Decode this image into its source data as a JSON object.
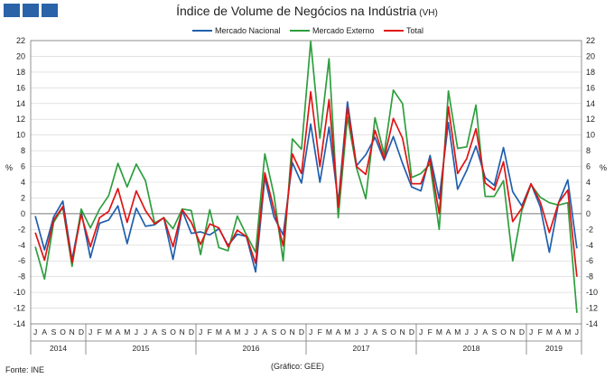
{
  "brand": {
    "icon": "ine-logo-blocks"
  },
  "title": {
    "main": "Índice de Volume de Negócios na Indústria",
    "sub": "(VH)"
  },
  "footer": {
    "source": "Fonte: INE",
    "credit": "(Gráfico: GEE)"
  },
  "colors": {
    "nacional": "#1f5fae",
    "externo": "#2e9e3e",
    "total": "#e01414",
    "grid": "#d2d2d2"
  },
  "chart_data": {
    "type": "line",
    "ylabel": "%",
    "ylim": [
      -14,
      22
    ],
    "yticks": [
      -14,
      -12,
      -10,
      -8,
      -6,
      -4,
      -2,
      0,
      2,
      4,
      6,
      8,
      10,
      12,
      14,
      16,
      18,
      20,
      22
    ],
    "grid": true,
    "legend": "top-center",
    "months": [
      "J",
      "A",
      "S",
      "O",
      "N",
      "D",
      "J",
      "F",
      "M",
      "A",
      "M",
      "J",
      "J",
      "A",
      "S",
      "O",
      "N",
      "D",
      "J",
      "F",
      "M",
      "A",
      "M",
      "J",
      "J",
      "A",
      "S",
      "O",
      "N",
      "D",
      "J",
      "F",
      "M",
      "A",
      "M",
      "J",
      "J",
      "A",
      "S",
      "O",
      "N",
      "D",
      "J",
      "F",
      "M",
      "A",
      "M",
      "J",
      "J",
      "A",
      "S",
      "O",
      "N",
      "D",
      "J",
      "F",
      "M",
      "A",
      "M",
      "J"
    ],
    "years": [
      {
        "label": "2014",
        "count": 6
      },
      {
        "label": "2015",
        "count": 12
      },
      {
        "label": "2016",
        "count": 12
      },
      {
        "label": "2017",
        "count": 12
      },
      {
        "label": "2018",
        "count": 12
      },
      {
        "label": "2019",
        "count": 6
      }
    ],
    "series": [
      {
        "name": "Mercado Nacional",
        "color": "#1f5fae",
        "values": [
          -0.3,
          -4.6,
          -0.4,
          1.6,
          -5.9,
          0.3,
          -5.6,
          -1.2,
          -0.8,
          1.0,
          -3.8,
          0.7,
          -1.6,
          -1.4,
          -0.5,
          -5.8,
          0.4,
          -2.5,
          -2.3,
          -2.7,
          -1.9,
          -4.0,
          -2.6,
          -2.9,
          -7.4,
          4.6,
          -0.4,
          -2.7,
          6.5,
          3.9,
          11.4,
          4.0,
          11.0,
          1.4,
          14.2,
          6.1,
          7.5,
          9.7,
          6.8,
          9.8,
          6.4,
          3.4,
          2.9,
          7.4,
          1.9,
          11.6,
          3.1,
          5.5,
          8.6,
          4.6,
          3.6,
          8.4,
          2.8,
          1.0,
          3.8,
          0.9,
          -4.9,
          1.4,
          4.3,
          -4.4
        ]
      },
      {
        "name": "Mercado Externo",
        "color": "#2e9e3e",
        "values": [
          -4.2,
          -8.3,
          -1.1,
          0.8,
          -6.7,
          0.6,
          -1.8,
          0.6,
          2.3,
          6.4,
          3.4,
          6.3,
          4.2,
          -1.2,
          -0.5,
          -1.9,
          0.6,
          0.4,
          -5.2,
          0.5,
          -4.3,
          -4.7,
          -0.3,
          -2.7,
          -4.9,
          7.6,
          2.4,
          -6.0,
          9.5,
          8.2,
          21.9,
          9.6,
          19.7,
          -0.5,
          12.3,
          5.8,
          1.9,
          12.2,
          7.6,
          15.7,
          14.0,
          4.6,
          5.1,
          6.3,
          -2.0,
          15.6,
          8.3,
          8.5,
          13.8,
          2.2,
          2.2,
          4.2,
          -6.0,
          0.4,
          3.7,
          2.1,
          1.4,
          1.1,
          1.4,
          -12.6
        ]
      },
      {
        "name": "Total",
        "color": "#e01414",
        "values": [
          -2.4,
          -5.9,
          -0.8,
          0.9,
          -6.2,
          -0.1,
          -4.2,
          -0.5,
          0.3,
          3.2,
          -1.1,
          2.9,
          0.4,
          -1.3,
          -0.5,
          -4.2,
          0.5,
          -1.1,
          -3.9,
          -1.3,
          -1.8,
          -4.2,
          -2.1,
          -2.9,
          -6.3,
          5.2,
          0.6,
          -4.1,
          7.6,
          5.1,
          15.5,
          6.0,
          14.5,
          0.8,
          13.5,
          6.0,
          5.0,
          10.6,
          7.0,
          12.1,
          9.6,
          3.8,
          3.8,
          6.9,
          0.0,
          13.6,
          5.1,
          7.0,
          10.8,
          3.9,
          3.0,
          6.6,
          -1.0,
          0.7,
          3.8,
          1.5,
          -2.4,
          1.4,
          3.0,
          -8.0
        ]
      }
    ]
  }
}
